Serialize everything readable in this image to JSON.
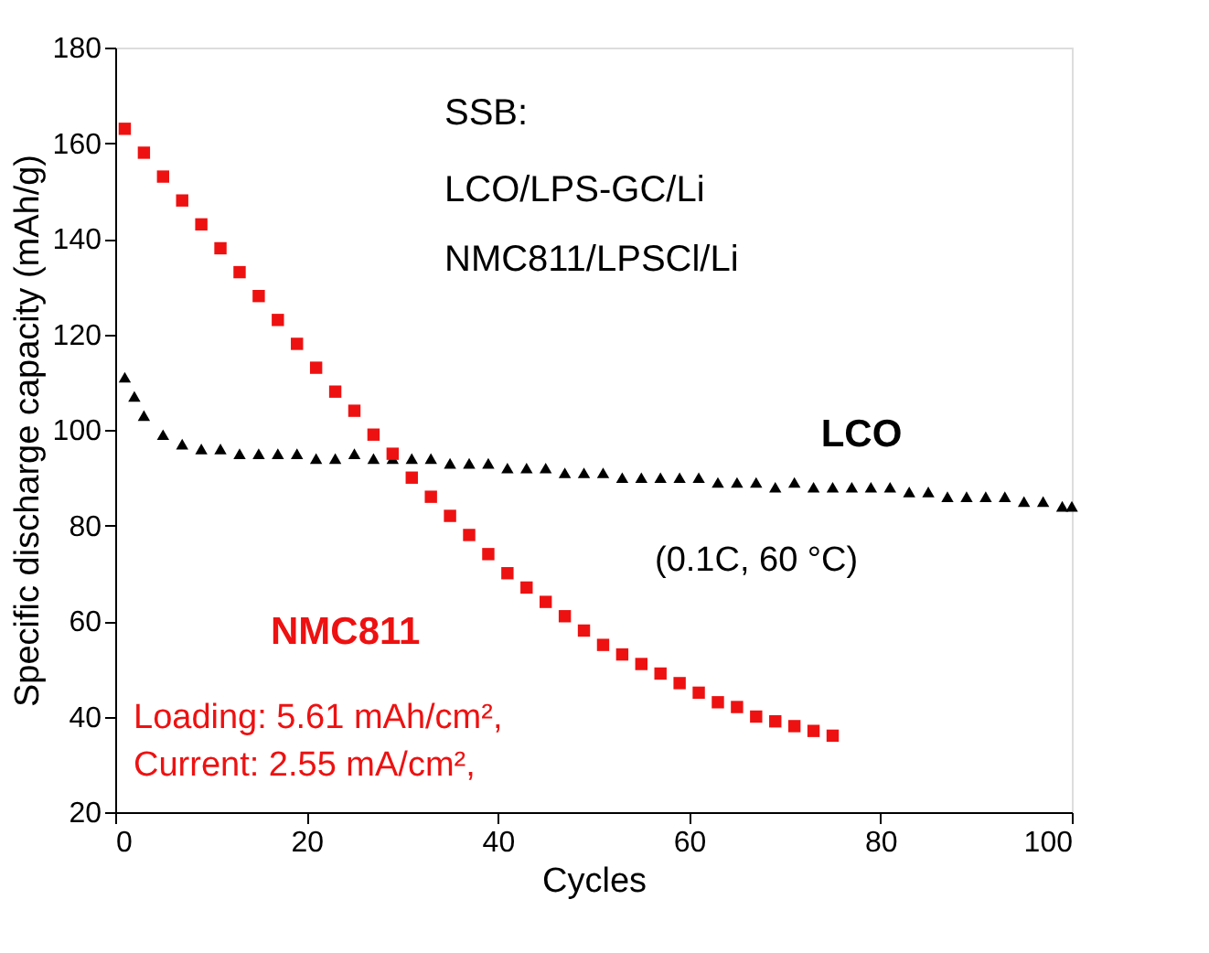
{
  "chart_data": {
    "type": "scatter",
    "xlabel": "Cycles",
    "ylabel": "Specific discharge capacity (mAh/g)",
    "xlim": [
      0,
      100
    ],
    "xticks": [
      0,
      20,
      40,
      60,
      80,
      100
    ],
    "ylim": [
      20,
      180
    ],
    "yticks": [
      20,
      40,
      60,
      80,
      100,
      120,
      140,
      160,
      180
    ],
    "grid": false,
    "series": [
      {
        "name": "LCO",
        "color": "#000000",
        "marker": "triangle",
        "x": [
          1,
          2,
          3,
          5,
          7,
          9,
          11,
          13,
          15,
          17,
          19,
          21,
          23,
          25,
          27,
          29,
          31,
          33,
          35,
          37,
          39,
          41,
          43,
          45,
          47,
          49,
          51,
          53,
          55,
          57,
          59,
          61,
          63,
          65,
          67,
          69,
          71,
          73,
          75,
          77,
          79,
          81,
          83,
          85,
          87,
          89,
          91,
          93,
          95,
          97,
          99,
          100
        ],
        "values": [
          111,
          107,
          103,
          99,
          97,
          96,
          96,
          95,
          95,
          95,
          95,
          94,
          94,
          95,
          94,
          94,
          94,
          94,
          93,
          93,
          93,
          92,
          92,
          92,
          91,
          91,
          91,
          90,
          90,
          90,
          90,
          90,
          89,
          89,
          89,
          88,
          89,
          88,
          88,
          88,
          88,
          88,
          87,
          87,
          86,
          86,
          86,
          86,
          85,
          85,
          84,
          84
        ]
      },
      {
        "name": "NMC811",
        "color": "#ee1111",
        "marker": "square",
        "x": [
          1,
          3,
          5,
          7,
          9,
          11,
          13,
          15,
          17,
          19,
          21,
          23,
          25,
          27,
          29,
          31,
          33,
          35,
          37,
          39,
          41,
          43,
          45,
          47,
          49,
          51,
          53,
          55,
          57,
          59,
          61,
          63,
          65,
          67,
          69,
          71,
          73,
          75
        ],
        "values": [
          163,
          158,
          153,
          148,
          143,
          138,
          133,
          128,
          123,
          118,
          113,
          108,
          104,
          99,
          95,
          90,
          86,
          82,
          78,
          74,
          70,
          67,
          64,
          61,
          58,
          55,
          53,
          51,
          49,
          47,
          45,
          43,
          42,
          40,
          39,
          38,
          37,
          36
        ]
      }
    ],
    "annotations": [
      "SSB:",
      "LCO/LPS-GC/Li",
      "NMC811/LPSCl/Li",
      "(0.1C, 60 °C)",
      "Loading: 5.61 mAh/cm², ",
      "Current: 2.55 mA/cm²,"
    ]
  }
}
